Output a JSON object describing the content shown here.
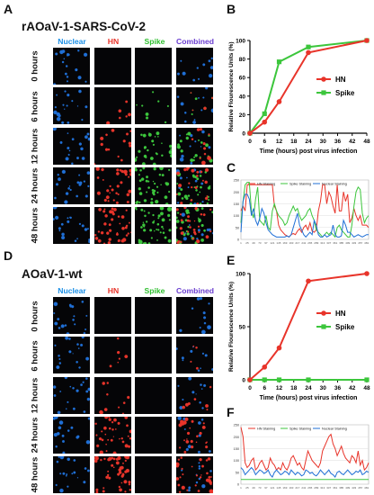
{
  "panels": {
    "A": {
      "letter": "A",
      "title": "rAOaV-1-SARS-CoV-2",
      "columns": [
        "Nuclear",
        "HN",
        "Spike",
        "Combined"
      ],
      "rows": [
        "0 hours",
        "6 hours",
        "12 hours",
        "24 hours",
        "48 hours"
      ]
    },
    "D": {
      "letter": "D",
      "title": "AOaV-1-wt",
      "columns": [
        "Nuclear",
        "HN",
        "Spike",
        "Combined"
      ],
      "rows": [
        "0 hours",
        "6 hours",
        "12 hours",
        "24 hours",
        "48 hours"
      ]
    },
    "B": {
      "letter": "B"
    },
    "C": {
      "letter": "C"
    },
    "E": {
      "letter": "E"
    },
    "F": {
      "letter": "F"
    }
  },
  "colors": {
    "nuclear": "#1f6fd6",
    "hn": "#e8342a",
    "spike": "#3cc63c",
    "combined": "#7a3cc8",
    "nuclear_text": "#1a8fe6",
    "hn_text": "#e8342a",
    "spike_text": "#2fbf2f",
    "combined_text": "#6b3fd0"
  },
  "chart_data": [
    {
      "id": "B",
      "type": "line",
      "xlabel": "Time (hours) post virus infection",
      "ylabel": "Relative Flourescence Units (%)",
      "x": [
        0,
        6,
        12,
        24,
        48
      ],
      "xticks": [
        0,
        6,
        12,
        18,
        24,
        30,
        36,
        42,
        48
      ],
      "yticks": [
        0,
        20,
        40,
        60,
        80,
        100
      ],
      "ylim": [
        0,
        100
      ],
      "legend": "right",
      "series": [
        {
          "name": "HN",
          "values": [
            0,
            12,
            34,
            87,
            100
          ]
        },
        {
          "name": "Spike",
          "values": [
            0,
            21,
            77,
            93,
            100
          ]
        }
      ]
    },
    {
      "id": "E",
      "type": "line",
      "xlabel": "Time (hours) post virus infection",
      "ylabel": "Relative Flourescence Units (%)",
      "x": [
        0,
        6,
        12,
        24,
        48
      ],
      "xticks": [
        0,
        6,
        12,
        18,
        24,
        30,
        36,
        42,
        48
      ],
      "yticks": [
        0,
        50,
        100
      ],
      "ylim": [
        0,
        100
      ],
      "legend": "right",
      "series": [
        {
          "name": "HN",
          "values": [
            0,
            12,
            30,
            93,
            100
          ]
        },
        {
          "name": "Spike",
          "values": [
            0,
            0,
            0,
            0,
            0
          ]
        }
      ]
    },
    {
      "id": "C",
      "type": "line",
      "legend": "top",
      "ylim": [
        0,
        250
      ],
      "yticks": [
        0,
        50,
        100,
        150,
        200,
        250
      ],
      "series": [
        {
          "name": "HN Staining",
          "values": [
            120,
            140,
            120,
            230,
            230,
            230,
            230,
            230,
            230,
            230,
            230,
            230,
            230,
            230,
            230,
            230,
            140,
            120,
            60,
            40,
            30,
            20,
            15,
            10,
            20,
            25,
            20,
            35,
            45,
            30,
            50,
            60,
            40,
            70,
            35,
            30,
            40,
            120,
            160,
            230,
            230,
            150,
            200,
            180,
            140,
            110,
            230,
            120,
            120,
            200,
            160,
            190,
            70,
            90,
            130,
            100,
            80,
            100,
            60,
            60,
            60,
            50
          ]
        },
        {
          "name": "Spike Staining",
          "values": [
            70,
            160,
            230,
            240,
            240,
            120,
            90,
            170,
            220,
            80,
            70,
            60,
            100,
            50,
            40,
            120,
            150,
            120,
            100,
            90,
            80,
            60,
            70,
            100,
            120,
            140,
            120,
            130,
            100,
            80,
            90,
            100,
            120,
            130,
            100,
            80,
            40,
            30,
            20,
            10,
            20,
            30,
            20,
            30,
            20,
            10,
            50,
            60,
            40,
            30,
            20,
            10,
            10,
            60,
            140,
            200,
            220,
            210,
            110,
            70,
            90,
            100
          ]
        },
        {
          "name": "Nuclear Staining",
          "values": [
            30,
            160,
            190,
            190,
            170,
            100,
            130,
            80,
            60,
            90,
            130,
            110,
            70,
            40,
            30,
            20,
            15,
            10,
            10,
            10,
            10,
            10,
            15,
            10,
            20,
            50,
            80,
            110,
            60,
            40,
            20,
            10,
            20,
            30,
            20,
            80,
            60,
            20,
            10,
            10,
            20,
            10,
            15,
            20,
            60,
            20,
            10,
            10,
            15,
            80,
            60,
            30,
            30,
            20,
            10,
            15,
            20,
            15,
            10,
            15,
            20,
            20
          ]
        }
      ]
    },
    {
      "id": "F",
      "type": "line",
      "legend": "top",
      "ylim": [
        0,
        250
      ],
      "yticks": [
        0,
        50,
        100,
        150,
        200,
        250
      ],
      "series": [
        {
          "name": "HN Staining",
          "values": [
            240,
            200,
            90,
            70,
            80,
            100,
            110,
            60,
            70,
            90,
            100,
            80,
            60,
            70,
            110,
            90,
            80,
            60,
            70,
            60,
            90,
            70,
            60,
            80,
            110,
            120,
            100,
            80,
            90,
            70,
            60,
            100,
            140,
            120,
            100,
            90,
            80,
            70,
            90,
            140,
            160,
            180,
            200,
            210,
            170,
            150,
            120,
            140,
            160,
            130,
            110,
            100,
            90,
            120,
            110,
            90,
            140,
            80,
            100,
            60,
            70,
            90
          ]
        },
        {
          "name": "Spike Staining",
          "values": [
            20,
            20,
            20,
            20,
            20,
            20,
            20,
            20,
            20,
            20,
            20,
            20,
            20,
            20,
            20,
            20,
            20,
            20,
            20,
            20,
            20,
            20,
            20,
            20,
            20,
            20,
            20,
            20,
            20,
            20,
            20,
            20,
            20,
            20,
            20,
            20,
            20,
            20,
            20,
            20,
            20,
            20,
            20,
            20,
            20,
            20,
            20,
            20,
            20,
            20,
            20,
            20,
            20,
            20,
            20,
            20,
            20,
            20,
            20,
            20,
            20,
            20
          ]
        },
        {
          "name": "Nuclear Staining",
          "values": [
            70,
            60,
            40,
            50,
            60,
            70,
            60,
            40,
            50,
            60,
            55,
            45,
            50,
            60,
            40,
            30,
            50,
            60,
            50,
            40,
            45,
            55,
            50,
            40,
            60,
            50,
            40,
            50,
            45,
            35,
            40,
            60,
            55,
            45,
            50,
            40,
            35,
            45,
            60,
            50,
            40,
            50,
            60,
            45,
            40,
            30,
            50,
            55,
            45,
            40,
            50,
            60,
            50,
            40,
            45,
            55,
            50,
            60,
            40,
            45,
            55,
            50
          ]
        }
      ]
    }
  ]
}
